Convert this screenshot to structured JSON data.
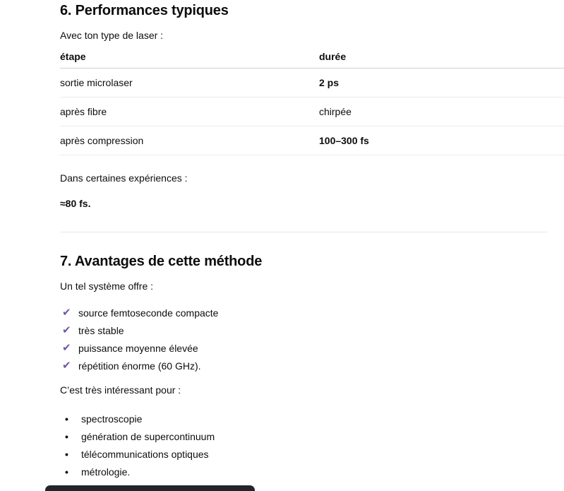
{
  "page": {
    "bg": "#ffffff",
    "text_color": "#0d0d0d",
    "check_color": "#7257a5",
    "divider_color": "#e7e7e7",
    "table_header_border": "#d0d0d0",
    "table_row_border": "#ebebeb",
    "dark_bar_color": "#24252a"
  },
  "section_performances": {
    "heading": "6. Performances typiques",
    "intro": "Avec ton type de laser :",
    "table": {
      "headers": [
        "étape",
        "durée"
      ],
      "rows": [
        {
          "etape": "sortie microlaser",
          "duree": "2 ps",
          "bold": true
        },
        {
          "etape": "après fibre",
          "duree": "chirpée",
          "bold": false
        },
        {
          "etape": "après compression",
          "duree": "100–300 fs",
          "bold": true
        }
      ]
    },
    "note_intro": "Dans certaines expériences :",
    "note_value": "≈80 fs."
  },
  "section_avantages": {
    "heading": "7. Avantages de cette méthode",
    "intro": "Un tel système offre :",
    "check_icon": "✔",
    "check_items": [
      "source femtoseconde compacte",
      "très stable",
      "puissance moyenne élevée",
      "répétition énorme (60 GHz)."
    ],
    "outro": "C’est très intéressant pour :",
    "bullet_items": [
      "spectroscopie",
      "génération de supercontinuum",
      "télécommunications optiques",
      "métrologie."
    ]
  }
}
